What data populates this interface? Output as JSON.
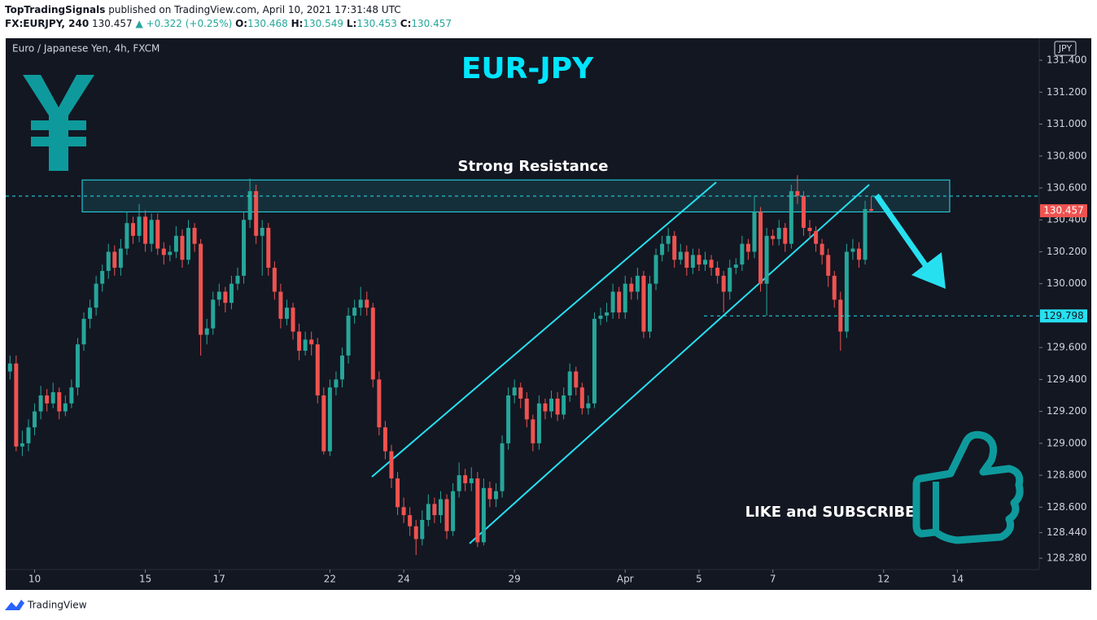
{
  "header": {
    "author": "TopTradingSignals",
    "published": "published on TradingView.com, April 10, 2021 17:31:48 UTC",
    "symbol": "FX:EURJPY, 240",
    "last": "130.457",
    "change": "+0.322 (+0.25%)",
    "o_label": "O:",
    "o": "130.468",
    "h_label": "H:",
    "h": "130.549",
    "l_label": "L:",
    "l": "130.453",
    "c_label": "C:",
    "c": "130.457"
  },
  "footer": {
    "brand": "TradingView"
  },
  "chart_data": {
    "type": "candlestick",
    "title": "EUR-JPY",
    "subtitle": "Euro / Japanese Yen, 4h, FXCM",
    "currency": "JPY",
    "annotations": {
      "resistance": "Strong Resistance",
      "cta": "LIKE and SUBSCRIBE"
    },
    "up_color": "#26a69a",
    "down_color": "#ef5350",
    "resistance_zone": [
      130.45,
      130.65
    ],
    "levels": [
      129.798
    ],
    "ylim": [
      128.209,
      131.538
    ],
    "yticks": [
      {
        "value": 131.4,
        "label": "131.400"
      },
      {
        "value": 131.2,
        "label": "131.200"
      },
      {
        "value": 131.0,
        "label": "131.000"
      },
      {
        "value": 130.8,
        "label": "130.800"
      },
      {
        "value": 130.6,
        "label": "130.600"
      },
      {
        "value": 130.4,
        "label": "130.400"
      },
      {
        "value": 130.2,
        "label": "130.200"
      },
      {
        "value": 130.0,
        "label": "130.000"
      },
      {
        "value": 129.6,
        "label": "129.600"
      },
      {
        "value": 129.4,
        "label": "129.400"
      },
      {
        "value": 129.2,
        "label": "129.200"
      },
      {
        "value": 129.0,
        "label": "129.000"
      },
      {
        "value": 128.8,
        "label": "128.800"
      },
      {
        "value": 128.6,
        "label": "128.600"
      },
      {
        "value": 128.44,
        "label": "128.440"
      },
      {
        "value": 128.28,
        "label": "128.280"
      }
    ],
    "xlim": [
      -0.7,
      167.3
    ],
    "xticks": [
      {
        "value": 4,
        "label": "10"
      },
      {
        "value": 22,
        "label": "15"
      },
      {
        "value": 34,
        "label": "17"
      },
      {
        "value": 52,
        "label": "22"
      },
      {
        "value": 64,
        "label": "24"
      },
      {
        "value": 82,
        "label": "29"
      },
      {
        "value": 100,
        "label": "Apr"
      },
      {
        "value": 112,
        "label": "5"
      },
      {
        "value": 124,
        "label": "7"
      },
      {
        "value": 142,
        "label": "12"
      },
      {
        "value": 154,
        "label": "14"
      }
    ],
    "ohlc": [
      [
        129.45,
        129.55,
        129.4,
        129.5
      ],
      [
        129.5,
        129.55,
        128.95,
        128.98
      ],
      [
        128.98,
        129.08,
        128.92,
        129.0
      ],
      [
        129.0,
        129.15,
        128.95,
        129.1
      ],
      [
        129.1,
        129.25,
        129.05,
        129.2
      ],
      [
        129.2,
        129.36,
        129.15,
        129.3
      ],
      [
        129.3,
        129.34,
        129.2,
        129.25
      ],
      [
        129.25,
        129.38,
        129.22,
        129.32
      ],
      [
        129.32,
        129.35,
        129.15,
        129.2
      ],
      [
        129.2,
        129.3,
        129.17,
        129.25
      ],
      [
        129.25,
        129.4,
        129.22,
        129.35
      ],
      [
        129.35,
        129.66,
        129.3,
        129.62
      ],
      [
        129.62,
        129.82,
        129.58,
        129.78
      ],
      [
        129.78,
        129.9,
        129.72,
        129.85
      ],
      [
        129.85,
        130.05,
        129.8,
        130.0
      ],
      [
        130.0,
        130.12,
        129.95,
        130.08
      ],
      [
        130.08,
        130.25,
        130.03,
        130.2
      ],
      [
        130.2,
        130.24,
        130.05,
        130.1
      ],
      [
        130.1,
        130.28,
        130.05,
        130.22
      ],
      [
        130.22,
        130.45,
        130.18,
        130.38
      ],
      [
        130.38,
        130.42,
        130.25,
        130.3
      ],
      [
        130.3,
        130.5,
        130.26,
        130.42
      ],
      [
        130.42,
        130.46,
        130.2,
        130.25
      ],
      [
        130.25,
        130.44,
        130.2,
        130.4
      ],
      [
        130.4,
        130.44,
        130.18,
        130.22
      ],
      [
        130.22,
        130.26,
        130.12,
        130.18
      ],
      [
        130.18,
        130.24,
        130.14,
        130.2
      ],
      [
        130.2,
        130.36,
        130.16,
        130.3
      ],
      [
        130.3,
        130.34,
        130.1,
        130.15
      ],
      [
        130.15,
        130.4,
        130.12,
        130.35
      ],
      [
        130.35,
        130.38,
        130.2,
        130.25
      ],
      [
        130.25,
        130.28,
        129.55,
        129.68
      ],
      [
        129.68,
        129.78,
        129.62,
        129.72
      ],
      [
        129.72,
        129.95,
        129.68,
        129.9
      ],
      [
        129.9,
        130.0,
        129.86,
        129.95
      ],
      [
        129.95,
        129.98,
        129.82,
        129.88
      ],
      [
        129.88,
        130.05,
        129.84,
        130.0
      ],
      [
        130.0,
        130.1,
        129.96,
        130.05
      ],
      [
        130.05,
        130.45,
        130.0,
        130.4
      ],
      [
        130.4,
        130.66,
        130.35,
        130.58
      ],
      [
        130.58,
        130.62,
        130.25,
        130.3
      ],
      [
        130.3,
        130.4,
        130.05,
        130.35
      ],
      [
        130.35,
        130.38,
        130.05,
        130.1
      ],
      [
        130.1,
        130.14,
        129.9,
        129.95
      ],
      [
        129.95,
        130.0,
        129.72,
        129.78
      ],
      [
        129.78,
        129.9,
        129.74,
        129.85
      ],
      [
        129.85,
        129.88,
        129.65,
        129.7
      ],
      [
        129.7,
        129.75,
        129.52,
        129.58
      ],
      [
        129.58,
        129.7,
        129.55,
        129.65
      ],
      [
        129.65,
        129.7,
        129.55,
        129.62
      ],
      [
        129.62,
        129.66,
        129.25,
        129.3
      ],
      [
        129.3,
        129.35,
        128.93,
        128.95
      ],
      [
        128.95,
        129.4,
        128.92,
        129.35
      ],
      [
        129.35,
        129.45,
        129.3,
        129.4
      ],
      [
        129.4,
        129.6,
        129.35,
        129.55
      ],
      [
        129.55,
        129.85,
        129.5,
        129.8
      ],
      [
        129.8,
        129.9,
        129.75,
        129.85
      ],
      [
        129.85,
        129.98,
        129.8,
        129.9
      ],
      [
        129.9,
        129.95,
        129.8,
        129.85
      ],
      [
        129.85,
        129.88,
        129.35,
        129.4
      ],
      [
        129.4,
        129.45,
        129.05,
        129.1
      ],
      [
        129.1,
        129.14,
        128.9,
        128.95
      ],
      [
        128.95,
        128.99,
        128.72,
        128.78
      ],
      [
        128.78,
        128.82,
        128.55,
        128.6
      ],
      [
        128.6,
        128.66,
        128.5,
        128.55
      ],
      [
        128.55,
        128.6,
        128.42,
        128.48
      ],
      [
        128.48,
        128.52,
        128.3,
        128.4
      ],
      [
        128.4,
        128.58,
        128.36,
        128.52
      ],
      [
        128.52,
        128.68,
        128.48,
        128.62
      ],
      [
        128.62,
        128.66,
        128.5,
        128.55
      ],
      [
        128.55,
        128.7,
        128.5,
        128.65
      ],
      [
        128.65,
        128.68,
        128.4,
        128.45
      ],
      [
        128.45,
        128.75,
        128.42,
        128.7
      ],
      [
        128.7,
        128.88,
        128.66,
        128.8
      ],
      [
        128.8,
        128.84,
        128.7,
        128.75
      ],
      [
        128.75,
        128.85,
        128.7,
        128.78
      ],
      [
        128.78,
        128.82,
        128.35,
        128.38
      ],
      [
        128.38,
        128.78,
        128.36,
        128.72
      ],
      [
        128.72,
        128.76,
        128.6,
        128.65
      ],
      [
        128.65,
        128.75,
        128.6,
        128.7
      ],
      [
        128.7,
        129.05,
        128.66,
        129.0
      ],
      [
        129.0,
        129.35,
        128.96,
        129.3
      ],
      [
        129.3,
        129.4,
        129.25,
        129.35
      ],
      [
        129.35,
        129.38,
        129.22,
        129.28
      ],
      [
        129.28,
        129.32,
        129.1,
        129.15
      ],
      [
        129.15,
        129.18,
        128.95,
        129.0
      ],
      [
        129.0,
        129.3,
        128.96,
        129.25
      ],
      [
        129.25,
        129.28,
        129.15,
        129.2
      ],
      [
        129.2,
        129.33,
        129.16,
        129.28
      ],
      [
        129.28,
        129.32,
        129.14,
        129.18
      ],
      [
        129.18,
        129.35,
        129.15,
        129.3
      ],
      [
        129.3,
        129.5,
        129.26,
        129.45
      ],
      [
        129.45,
        129.48,
        129.3,
        129.35
      ],
      [
        129.35,
        129.38,
        129.18,
        129.22
      ],
      [
        129.22,
        129.3,
        129.18,
        129.25
      ],
      [
        129.25,
        129.82,
        129.22,
        129.78
      ],
      [
        129.78,
        129.85,
        129.74,
        129.8
      ],
      [
        129.8,
        129.88,
        129.76,
        129.82
      ],
      [
        129.82,
        130.0,
        129.78,
        129.95
      ],
      [
        129.95,
        129.98,
        129.78,
        129.82
      ],
      [
        129.82,
        130.05,
        129.78,
        130.0
      ],
      [
        130.0,
        130.04,
        129.9,
        129.95
      ],
      [
        129.95,
        130.1,
        129.9,
        130.05
      ],
      [
        130.05,
        130.08,
        129.66,
        129.7
      ],
      [
        129.7,
        130.05,
        129.66,
        130.0
      ],
      [
        130.0,
        130.22,
        129.96,
        130.18
      ],
      [
        130.18,
        130.3,
        130.14,
        130.25
      ],
      [
        130.25,
        130.35,
        130.2,
        130.3
      ],
      [
        130.3,
        130.33,
        130.1,
        130.15
      ],
      [
        130.15,
        130.25,
        130.12,
        130.2
      ],
      [
        130.2,
        130.24,
        130.05,
        130.1
      ],
      [
        130.1,
        130.22,
        130.06,
        130.18
      ],
      [
        130.18,
        130.22,
        130.08,
        130.12
      ],
      [
        130.12,
        130.2,
        130.08,
        130.15
      ],
      [
        130.15,
        130.18,
        130.05,
        130.1
      ],
      [
        130.1,
        130.14,
        130.0,
        130.05
      ],
      [
        130.05,
        130.08,
        129.82,
        129.95
      ],
      [
        129.95,
        130.15,
        129.9,
        130.1
      ],
      [
        130.1,
        130.16,
        130.06,
        130.12
      ],
      [
        130.12,
        130.3,
        130.08,
        130.25
      ],
      [
        130.25,
        130.28,
        130.15,
        130.2
      ],
      [
        130.2,
        130.55,
        130.16,
        130.45
      ],
      [
        130.45,
        130.48,
        129.95,
        130.0
      ],
      [
        130.0,
        130.35,
        129.8,
        130.3
      ],
      [
        130.3,
        130.34,
        130.24,
        130.28
      ],
      [
        130.28,
        130.4,
        130.24,
        130.35
      ],
      [
        130.35,
        130.38,
        130.2,
        130.25
      ],
      [
        130.25,
        130.62,
        130.22,
        130.58
      ],
      [
        130.58,
        130.68,
        130.5,
        130.55
      ],
      [
        130.55,
        130.58,
        130.3,
        130.35
      ],
      [
        130.35,
        130.4,
        130.28,
        130.33
      ],
      [
        130.33,
        130.36,
        130.2,
        130.25
      ],
      [
        130.25,
        130.28,
        130.12,
        130.18
      ],
      [
        130.18,
        130.22,
        129.98,
        130.05
      ],
      [
        130.05,
        130.08,
        129.85,
        129.9
      ],
      [
        129.9,
        129.95,
        129.58,
        129.7
      ],
      [
        129.7,
        130.25,
        129.66,
        130.2
      ],
      [
        130.2,
        130.28,
        130.15,
        130.22
      ],
      [
        130.22,
        130.26,
        130.1,
        130.15
      ],
      [
        130.15,
        130.52,
        130.12,
        130.468
      ],
      [
        130.468,
        130.549,
        130.453,
        130.457
      ]
    ]
  }
}
